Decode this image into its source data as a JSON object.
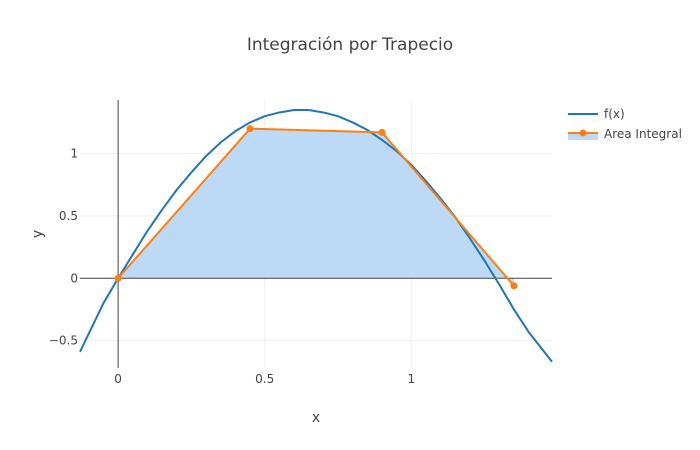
{
  "chart_data": {
    "type": "line",
    "title": "Integración por Trapecio",
    "xlabel": "x",
    "ylabel": "y",
    "xlim": [
      -0.13,
      1.48
    ],
    "ylim": [
      -0.72,
      1.43
    ],
    "x_ticks": [
      0,
      0.5,
      1
    ],
    "x_tick_labels": [
      "0",
      "0.5",
      "1"
    ],
    "y_ticks": [
      -0.5,
      0,
      0.5,
      1
    ],
    "y_tick_labels": [
      "−0.5",
      "0",
      "0.5",
      "1"
    ],
    "grid": true,
    "legend_position": "top-right",
    "series": [
      {
        "name": "f(x)",
        "mode": "lines",
        "color": "#1f77b4",
        "x": [
          -0.13,
          -0.05,
          0,
          0.05,
          0.1,
          0.15,
          0.2,
          0.25,
          0.3,
          0.35,
          0.4,
          0.45,
          0.5,
          0.55,
          0.6,
          0.65,
          0.7,
          0.75,
          0.8,
          0.85,
          0.9,
          0.95,
          1.0,
          1.05,
          1.1,
          1.15,
          1.2,
          1.25,
          1.3,
          1.35,
          1.4,
          1.48
        ],
        "y": [
          -0.59,
          -0.2,
          0.0,
          0.19,
          0.38,
          0.55,
          0.71,
          0.85,
          0.98,
          1.09,
          1.18,
          1.25,
          1.3,
          1.33,
          1.35,
          1.35,
          1.33,
          1.3,
          1.25,
          1.19,
          1.11,
          1.02,
          0.91,
          0.78,
          0.64,
          0.49,
          0.32,
          0.14,
          -0.05,
          -0.25,
          -0.43,
          -0.67
        ]
      },
      {
        "name": "Area Integral",
        "mode": "lines+markers",
        "fill": "tozeroy",
        "color": "#ff7f0e",
        "fill_color": "#bcdaf5",
        "x": [
          0,
          0.45,
          0.9,
          1.35
        ],
        "y": [
          0.0,
          1.2,
          1.17,
          -0.06
        ]
      }
    ]
  }
}
